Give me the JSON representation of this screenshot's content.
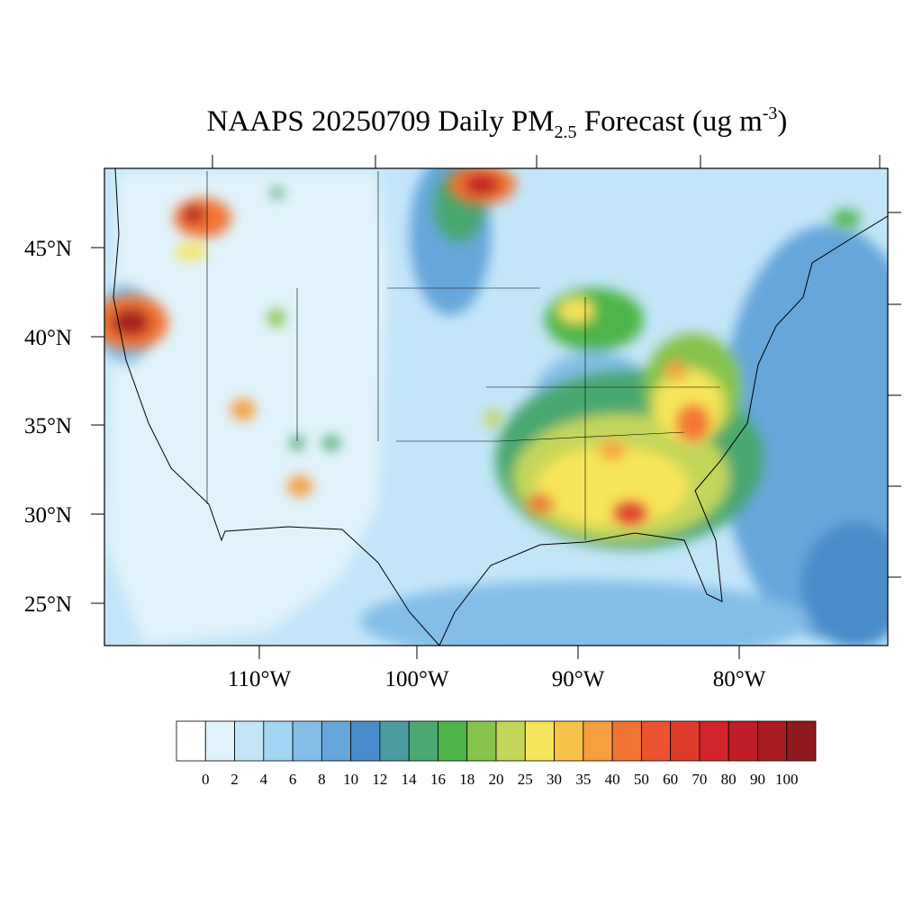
{
  "title": {
    "text": "NAAPS 20250709 Daily PM",
    "sub": "2.5",
    "rest": " Forecast (ug m",
    "sup": "-3",
    "close": ")"
  },
  "lat_labels": [
    "45°N",
    "40°N",
    "35°N",
    "30°N",
    "25°N"
  ],
  "lon_labels": [
    "110°W",
    "100°W",
    "90°W",
    "80°W"
  ],
  "colorbar": {
    "labels": [
      0,
      2,
      4,
      6,
      8,
      10,
      12,
      14,
      16,
      18,
      20,
      25,
      30,
      35,
      40,
      50,
      60,
      70,
      80,
      90,
      100
    ],
    "colors": [
      "#ffffff",
      "#e0f3fc",
      "#c3e5f8",
      "#a2d6f4",
      "#84bde6",
      "#66a6da",
      "#4a8cca",
      "#4a9ca0",
      "#4aa870",
      "#4db548",
      "#86c44c",
      "#c3d65a",
      "#f6e45a",
      "#f8c24a",
      "#f69e40",
      "#f27433",
      "#ea5230",
      "#df3a2b",
      "#d2242c",
      "#bd1e28",
      "#a81c22",
      "#8f1a1d"
    ]
  }
}
